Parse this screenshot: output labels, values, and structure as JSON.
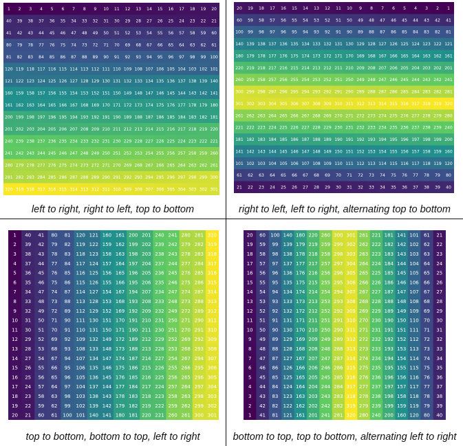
{
  "layout_note": "",
  "panels": [
    {
      "id": "p1",
      "caption": "left to right, right to left, top to bottom",
      "rows": 16,
      "cols": 20,
      "pattern": "serpentine-rows-ttb"
    },
    {
      "id": "p2",
      "caption": "right to left, left to right, alternating top to bottom",
      "rows": 16,
      "cols": 20,
      "pattern": "serpentine-rows-alt"
    },
    {
      "id": "p3",
      "caption": "top to bottom, bottom to top, left to right",
      "rows": 20,
      "cols": 16,
      "pattern": "serpentine-cols-ltr"
    },
    {
      "id": "p4",
      "caption": "bottom to top, top to bottom, alternating left to right",
      "rows": 20,
      "cols": 16,
      "pattern": "serpentine-cols-alt"
    }
  ],
  "colors": {
    "colormap": "viridis",
    "stops": [
      "#440154",
      "#3b528b",
      "#21908d",
      "#5dc963",
      "#fde725"
    ],
    "cell_text": "#ffffff",
    "divider": "#111111"
  }
}
